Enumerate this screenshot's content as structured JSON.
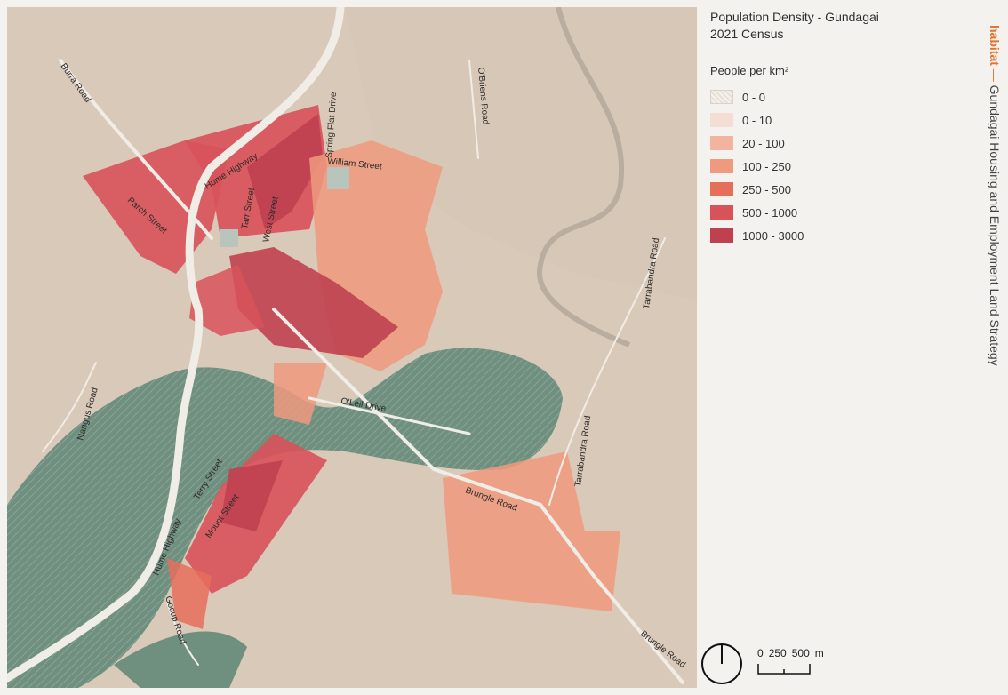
{
  "title": {
    "line1": "Population Density - Gundagai",
    "line2": "2021 Census"
  },
  "legend": {
    "title": "People per km²",
    "items": [
      {
        "label": "0 - 0",
        "color": "#e7e0d6",
        "hatch": true
      },
      {
        "label": "0 - 10",
        "color": "#f4ddd3"
      },
      {
        "label": "20 - 100",
        "color": "#f2b49e"
      },
      {
        "label": "100 - 250",
        "color": "#ef9a7e"
      },
      {
        "label": "250 - 500",
        "color": "#e66f5a"
      },
      {
        "label": "500 - 1000",
        "color": "#d8525a"
      },
      {
        "label": "1000 - 3000",
        "color": "#bf4150"
      }
    ]
  },
  "brand": {
    "name": "habitat",
    "dash": " — ",
    "tagline": "Gundagai Housing and Employment Land Strategy"
  },
  "scale": {
    "labels": [
      "0",
      "250",
      "500",
      "m"
    ]
  },
  "roads": {
    "burra": "Burra Road",
    "hume1": "Hume Highway",
    "hume2": "Hume Highway",
    "spring": "Spring Flat Drive",
    "obriens": "O'Briens Road",
    "william": "William Street",
    "parch": "Parch Street",
    "tarr": "Tarr Street",
    "west": "West Street",
    "tarrabandra1": "Tarrabandra Road",
    "tarrabandra2": "Tarrabandra Road",
    "nangus": "Nangus Road",
    "oleil": "O'Leil Drive",
    "brungle1": "Brungle Road",
    "brungle2": "Brungle Road",
    "terry": "Terry Street",
    "mount": "Mount Street",
    "gocup": "Gocup Road"
  },
  "colors": {
    "background": "#d9c9b8",
    "river": "#6f8f7f",
    "road": "#f0ece6"
  }
}
